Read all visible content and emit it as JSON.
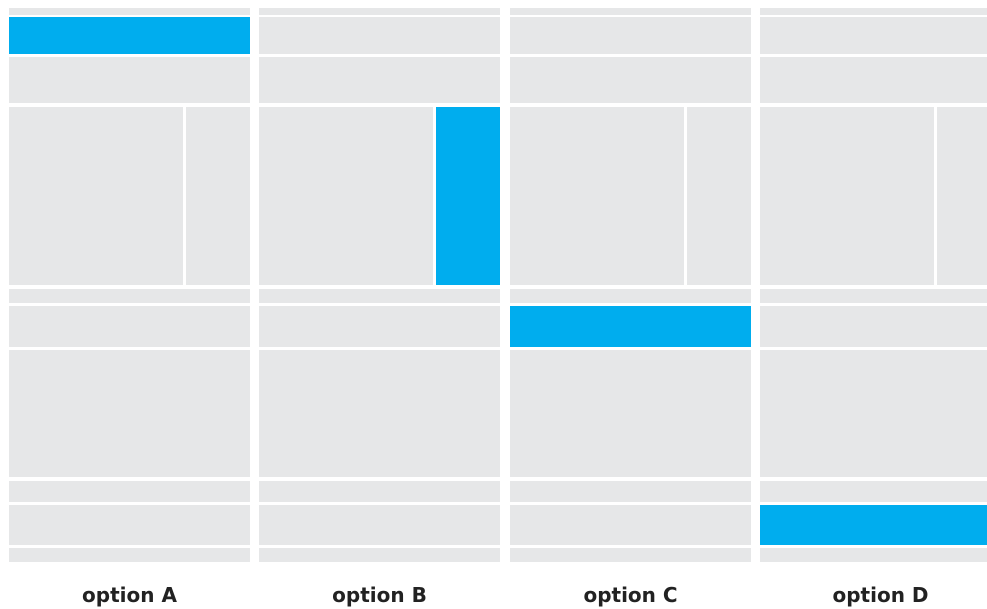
{
  "highlight_color": "#00adee",
  "block_color": "#e6e7e8",
  "options": [
    {
      "label": "option A",
      "highlighted_region": "header"
    },
    {
      "label": "option B",
      "highlighted_region": "right-sidebar"
    },
    {
      "label": "option C",
      "highlighted_region": "section-heading"
    },
    {
      "label": "option D",
      "highlighted_region": "footer"
    }
  ]
}
